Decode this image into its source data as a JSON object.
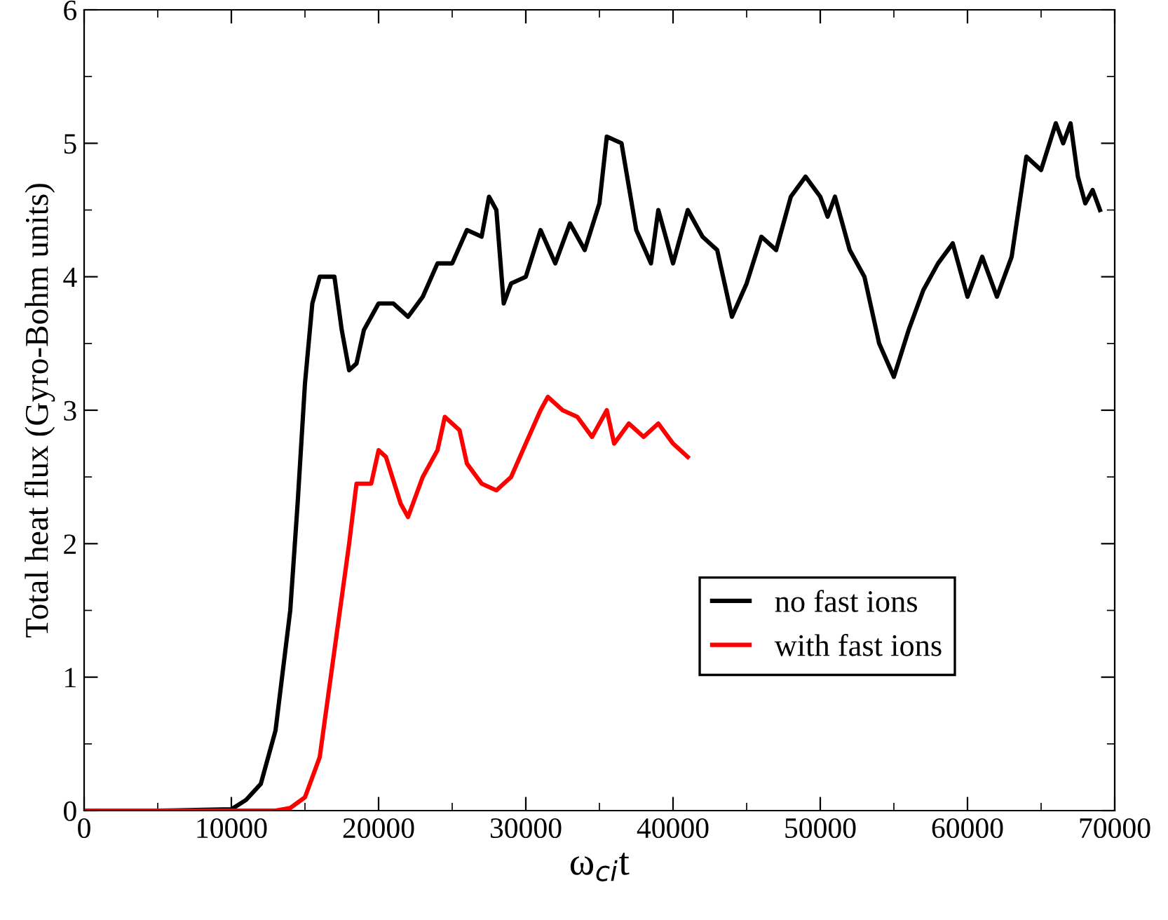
{
  "chart_data": {
    "type": "line",
    "xlabel": "ω$_{ci}$t",
    "ylabel": "Total heat flux (Gyro-Bohm units)",
    "xlim": [
      0,
      70000
    ],
    "ylim": [
      0,
      6
    ],
    "xticks": [
      0,
      10000,
      20000,
      30000,
      40000,
      50000,
      60000,
      70000
    ],
    "yticks": [
      0,
      1,
      2,
      3,
      4,
      5,
      6
    ],
    "grid": false,
    "legend": "lower right",
    "marker": "none",
    "line_style": "solid",
    "series": [
      {
        "name": "no fast ions",
        "color": "#000000",
        "x": [
          0,
          5000,
          10000,
          11000,
          12000,
          13000,
          14000,
          14500,
          15000,
          15500,
          16000,
          17000,
          17500,
          18000,
          18500,
          19000,
          20000,
          21000,
          22000,
          23000,
          24000,
          25000,
          26000,
          27000,
          27500,
          28000,
          28500,
          29000,
          30000,
          31000,
          32000,
          33000,
          34000,
          35000,
          35500,
          36500,
          37500,
          38500,
          39000,
          40000,
          41000,
          42000,
          43000,
          44000,
          45000,
          46000,
          47000,
          48000,
          49000,
          50000,
          50500,
          51000,
          52000,
          53000,
          54000,
          55000,
          56000,
          57000,
          58000,
          59000,
          60000,
          61000,
          62000,
          63000,
          64000,
          65000,
          66000,
          66500,
          67000,
          67500,
          68000,
          68500,
          69000
        ],
        "values": [
          0,
          0,
          0.01,
          0.08,
          0.2,
          0.6,
          1.5,
          2.3,
          3.2,
          3.8,
          4.0,
          4.0,
          3.6,
          3.3,
          3.35,
          3.6,
          3.8,
          3.8,
          3.7,
          3.85,
          4.1,
          4.1,
          4.35,
          4.3,
          4.6,
          4.5,
          3.8,
          3.95,
          4.0,
          4.35,
          4.1,
          4.4,
          4.2,
          4.55,
          5.05,
          5.0,
          4.35,
          4.1,
          4.5,
          4.1,
          4.5,
          4.3,
          4.2,
          3.7,
          3.95,
          4.3,
          4.2,
          4.6,
          4.75,
          4.6,
          4.45,
          4.6,
          4.2,
          4.0,
          3.5,
          3.25,
          3.6,
          3.9,
          4.1,
          4.25,
          3.85,
          4.15,
          3.85,
          4.15,
          4.9,
          4.8,
          5.15,
          5.0,
          5.15,
          4.75,
          4.55,
          4.65,
          4.5
        ]
      },
      {
        "name": "with fast ions",
        "color": "#ff0000",
        "x": [
          0,
          5000,
          10000,
          13000,
          14000,
          15000,
          16000,
          17000,
          18000,
          18500,
          19500,
          20000,
          20500,
          21500,
          22000,
          23000,
          24000,
          24500,
          25500,
          26000,
          27000,
          28000,
          29000,
          30000,
          31000,
          31500,
          32500,
          33500,
          34500,
          35500,
          36000,
          37000,
          38000,
          39000,
          40000,
          41000
        ],
        "values": [
          0,
          0,
          0,
          0,
          0.02,
          0.1,
          0.4,
          1.2,
          2.0,
          2.45,
          2.45,
          2.7,
          2.65,
          2.3,
          2.2,
          2.5,
          2.7,
          2.95,
          2.85,
          2.6,
          2.45,
          2.4,
          2.5,
          2.75,
          3.0,
          3.1,
          3.0,
          2.95,
          2.8,
          3.0,
          2.75,
          2.9,
          2.8,
          2.9,
          2.75,
          2.65
        ]
      }
    ]
  }
}
